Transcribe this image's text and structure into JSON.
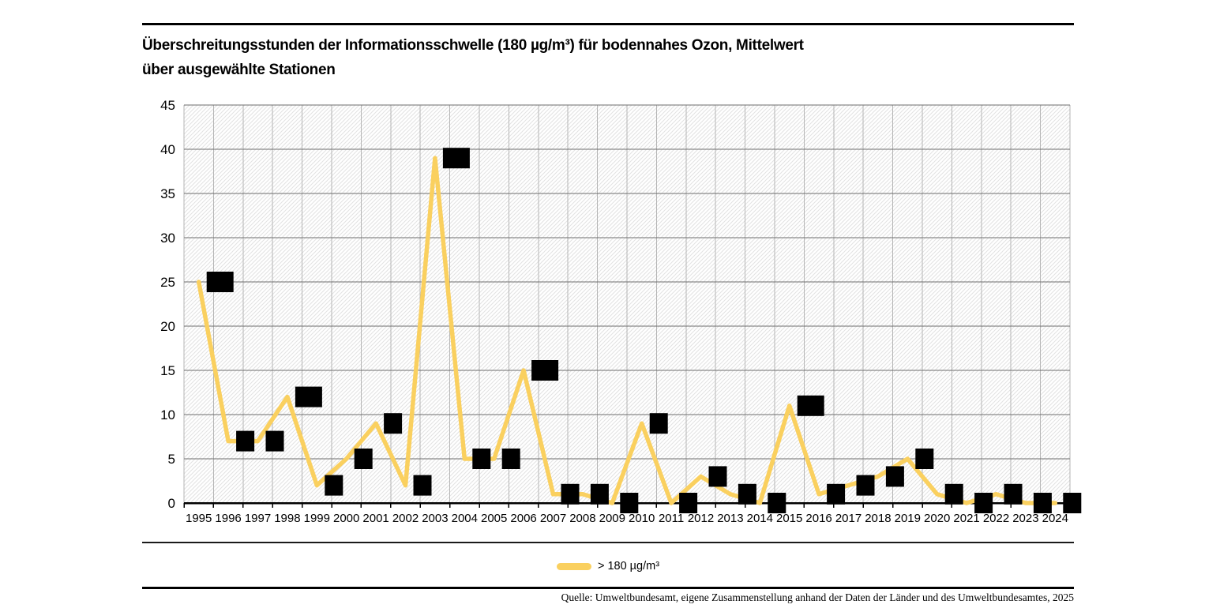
{
  "header": {
    "title_line1": "Überschreitungsstunden der Informationsschwelle (180 µg/m³) für bodennahes Ozon, Mittelwert",
    "title_line2": "über ausgewählte Stationen"
  },
  "chart_data": {
    "type": "line",
    "title": "Überschreitungsstunden der Informationsschwelle (180 µg/m³) für bodennahes Ozon, Mittelwert über ausgewählte Stationen",
    "categories": [
      "1995",
      "1996",
      "1997",
      "1998",
      "1999",
      "2000",
      "2001",
      "2002",
      "2003",
      "2004",
      "2005",
      "2006",
      "2007",
      "2008",
      "2009",
      "2010",
      "2011",
      "2012",
      "2013",
      "2014",
      "2015",
      "2016",
      "2017",
      "2018",
      "2019",
      "2020",
      "2021",
      "2022",
      "2023",
      "2024"
    ],
    "series": [
      {
        "name": "> 180 µg/m³",
        "values": [
          25,
          7,
          7,
          12,
          2,
          5,
          9,
          2,
          39,
          5,
          5,
          15,
          1,
          1,
          0,
          9,
          0,
          3,
          1,
          0,
          11,
          1,
          2,
          3,
          5,
          1,
          0,
          1,
          0,
          0
        ],
        "color": "#FAD05F"
      }
    ],
    "xlabel": "",
    "ylabel": "",
    "ylim": [
      0,
      45
    ],
    "ytick_interval": 5,
    "grid": true,
    "plot_background": "diagonal-hatch",
    "data_labels": true,
    "legend_position": "bottom-center"
  },
  "legend": {
    "label": "> 180 µg/m³"
  },
  "colors": {
    "line": "#FAD05F",
    "label_background": "#000000",
    "label_text": "#ffffff",
    "h_gridline": "#6e6e6e",
    "v_gridline": "#b5b5b5",
    "hatch_line": "#e2e2e2",
    "axis": "#000000"
  },
  "footer": {
    "source": "Quelle: Umweltbundesamt, eigene Zusammenstellung anhand der Daten der Länder und des Umweltbundesamtes, 2025"
  }
}
